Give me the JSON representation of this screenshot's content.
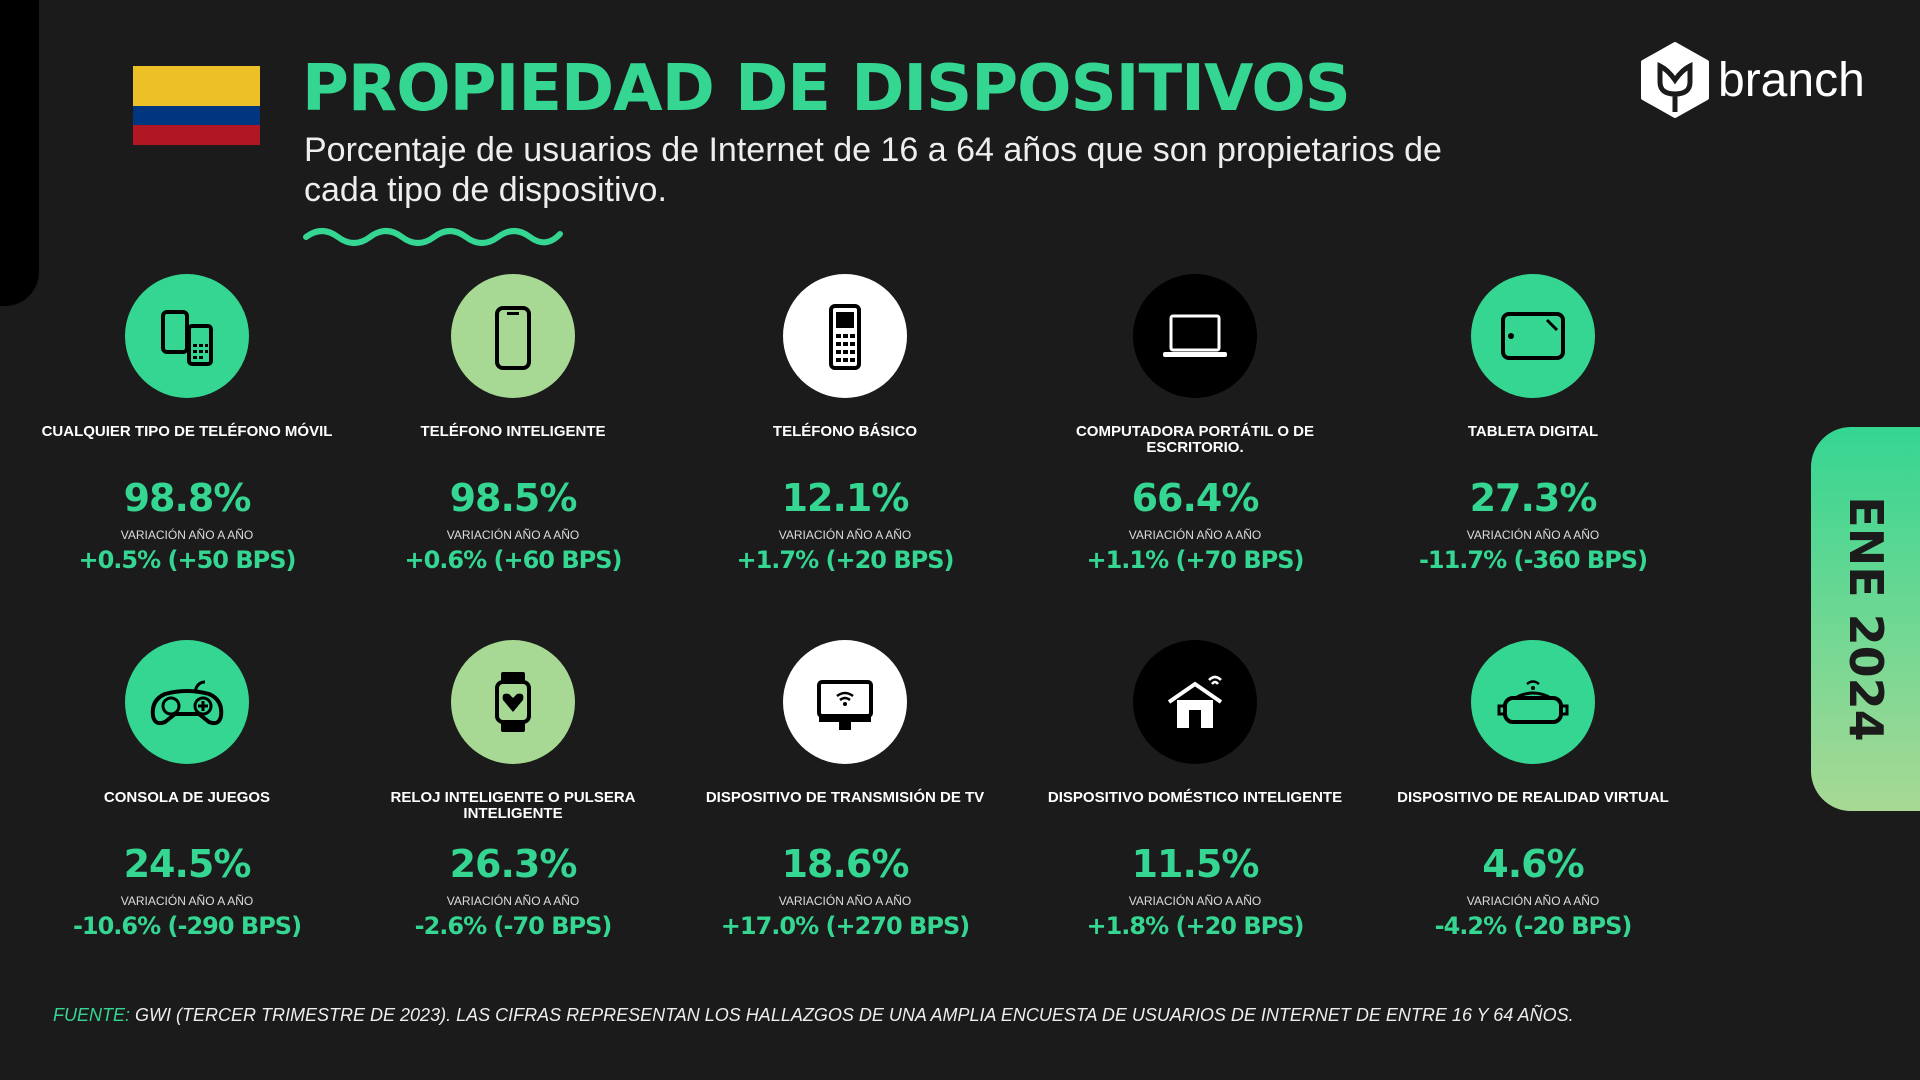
{
  "header": {
    "title": "PROPIEDAD DE DISPOSITIVOS",
    "subtitle": "Porcentaje de usuarios de Internet de 16 a 64 años que son propietarios de cada tipo de dispositivo."
  },
  "brand": {
    "name": "branch"
  },
  "date_tab": "ENE 2024",
  "colors": {
    "accent": "#34d692",
    "light_green": "#a8d994",
    "background": "#1b1b1b",
    "flag": [
      "#ecc026",
      "#00367f",
      "#b01623"
    ]
  },
  "devices": [
    {
      "label": "CUALQUIER TIPO DE TELÉFONO MÓVIL",
      "value": "98.8%",
      "var_label": "VARIACIÓN AÑO A AÑO",
      "change": "+0.5% (+50 BPS)",
      "icon": "mobile-phones-icon",
      "circle": "#34d692"
    },
    {
      "label": "TELÉFONO INTELIGENTE",
      "value": "98.5%",
      "var_label": "VARIACIÓN AÑO A AÑO",
      "change": "+0.6% (+60 BPS)",
      "icon": "smartphone-icon",
      "circle": "#a8d994"
    },
    {
      "label": "TELÉFONO BÁSICO",
      "value": "12.1%",
      "var_label": "VARIACIÓN AÑO A AÑO",
      "change": "+1.7% (+20 BPS)",
      "icon": "feature-phone-icon",
      "circle": "#ffffff"
    },
    {
      "label": "COMPUTADORA PORTÁTIL O DE ESCRITORIO.",
      "value": "66.4%",
      "var_label": "VARIACIÓN AÑO A AÑO",
      "change": "+1.1% (+70 BPS)",
      "icon": "laptop-icon",
      "circle": "#000000"
    },
    {
      "label": "TABLETA DIGITAL",
      "value": "27.3%",
      "var_label": "VARIACIÓN AÑO A AÑO",
      "change": "-11.7% (-360 BPS)",
      "icon": "tablet-icon",
      "circle": "#34d692"
    },
    {
      "label": "CONSOLA DE JUEGOS",
      "value": "24.5%",
      "var_label": "VARIACIÓN AÑO A AÑO",
      "change": "-10.6% (-290 BPS)",
      "icon": "gamepad-icon",
      "circle": "#34d692"
    },
    {
      "label": "RELOJ INTELIGENTE O PULSERA INTELIGENTE",
      "value": "26.3%",
      "var_label": "VARIACIÓN AÑO A AÑO",
      "change": "-2.6% (-70 BPS)",
      "icon": "smartwatch-icon",
      "circle": "#a8d994"
    },
    {
      "label": "DISPOSITIVO DE TRANSMISIÓN DE TV",
      "value": "18.6%",
      "var_label": "VARIACIÓN AÑO A AÑO",
      "change": "+17.0% (+270 BPS)",
      "icon": "tv-streaming-icon",
      "circle": "#ffffff"
    },
    {
      "label": "DISPOSITIVO DOMÉSTICO INTELIGENTE",
      "value": "11.5%",
      "var_label": "VARIACIÓN AÑO A AÑO",
      "change": "+1.8% (+20 BPS)",
      "icon": "smart-home-icon",
      "circle": "#000000"
    },
    {
      "label": "DISPOSITIVO DE REALIDAD VIRTUAL",
      "value": "4.6%",
      "var_label": "VARIACIÓN AÑO A AÑO",
      "change": "-4.2% (-20 BPS)",
      "icon": "vr-headset-icon",
      "circle": "#34d692"
    }
  ],
  "footer": {
    "source_label": "FUENTE:",
    "text": "GWI (TERCER TRIMESTRE DE 2023). LAS CIFRAS REPRESENTAN LOS HALLAZGOS DE UNA AMPLIA ENCUESTA DE USUARIOS DE INTERNET DE ENTRE 16 Y 64 AÑOS."
  }
}
